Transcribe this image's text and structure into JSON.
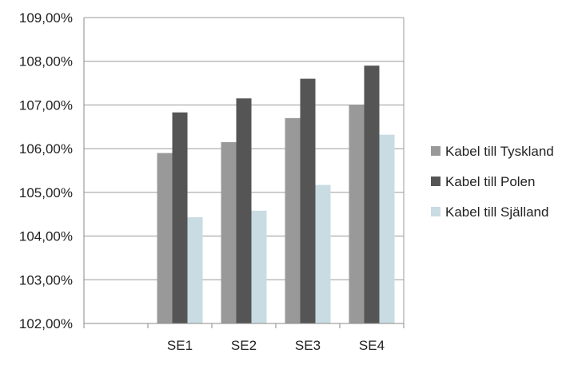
{
  "chart_data": {
    "type": "bar",
    "categories": [
      "",
      "SE1",
      "SE2",
      "SE3",
      "SE4"
    ],
    "series": [
      {
        "name": "Kabel till Tyskland",
        "color": "#999999",
        "values": [
          null,
          105.9,
          106.15,
          106.7,
          107.0
        ]
      },
      {
        "name": "Kabel till Polen",
        "color": "#555555",
        "values": [
          null,
          106.83,
          107.15,
          107.6,
          107.9
        ]
      },
      {
        "name": "Kabel till Själland",
        "color": "#c9dbe3",
        "values": [
          null,
          104.43,
          104.58,
          105.17,
          106.32
        ]
      }
    ],
    "ylim": [
      102,
      109
    ],
    "yticks": [
      102,
      103,
      104,
      105,
      106,
      107,
      108,
      109
    ],
    "ytick_labels": [
      "102,00%",
      "103,00%",
      "104,00%",
      "105,00%",
      "106,00%",
      "107,00%",
      "108,00%",
      "109,00%"
    ],
    "grid": true,
    "legend_position": "right",
    "title": "",
    "xlabel": "",
    "ylabel": ""
  }
}
